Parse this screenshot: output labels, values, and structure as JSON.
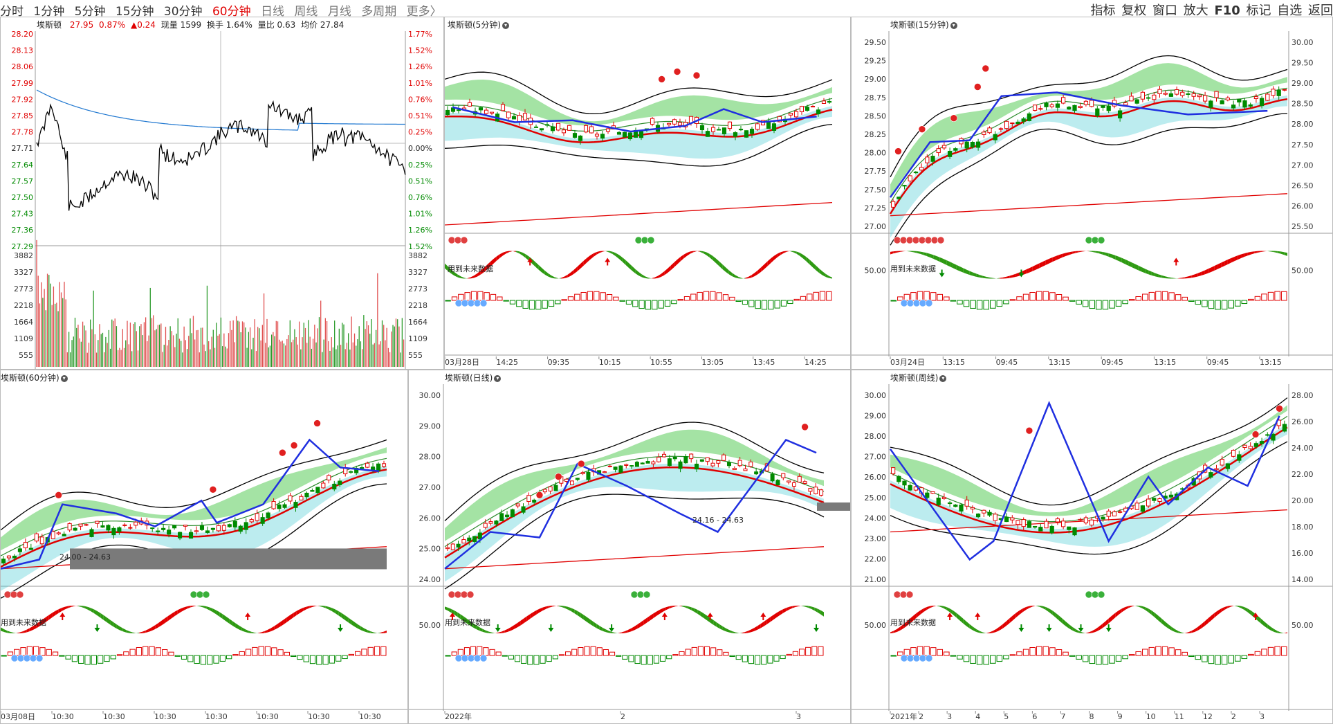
{
  "toolbar": {
    "tabs": [
      {
        "label": "分时",
        "active": false
      },
      {
        "label": "1分钟",
        "active": false
      },
      {
        "label": "5分钟",
        "active": false
      },
      {
        "label": "15分钟",
        "active": false
      },
      {
        "label": "30分钟",
        "active": false
      },
      {
        "label": "60分钟",
        "active": true
      },
      {
        "label": "日线",
        "active": false
      },
      {
        "label": "周线",
        "active": false
      },
      {
        "label": "月线",
        "active": false
      },
      {
        "label": "多周期",
        "active": false
      },
      {
        "label": "更多〉",
        "active": false
      }
    ],
    "right_items": [
      "指标",
      "复权",
      "窗口",
      "放大",
      "F10",
      "标记",
      "自选",
      "返回"
    ]
  },
  "intraday": {
    "title": "埃斯顿",
    "price": "27.95",
    "pct": "0.87%",
    "change": "▲0.24",
    "volume": "现量 1599",
    "turnover": "换手 1.64%",
    "ratio": "量比 0.63",
    "avg": "均价 27.84",
    "price_ticks": [
      "28.20",
      "28.13",
      "28.06",
      "27.99",
      "27.92",
      "27.85",
      "27.78",
      "27.71",
      "27.64",
      "27.57",
      "27.50",
      "27.43",
      "27.36",
      "27.29"
    ],
    "pct_ticks": [
      "1.77%",
      "1.52%",
      "1.26%",
      "1.01%",
      "0.76%",
      "0.51%",
      "0.25%",
      "0.00%",
      "0.25%",
      "0.51%",
      "0.76%",
      "1.01%",
      "1.26%",
      "1.52%"
    ],
    "vol_ticks": [
      "3882",
      "3327",
      "2773",
      "2218",
      "1664",
      "1109",
      "555"
    ],
    "colors": {
      "up": "#e00000",
      "down": "#008a00",
      "price_line": "#000000",
      "avg_line": "#1f77d0"
    }
  },
  "panels": {
    "m5": {
      "title": "埃斯顿(5分钟)",
      "future_label": "用到未来数据",
      "x_labels": [
        "03月28日",
        "14:25",
        "09:35",
        "10:15",
        "10:55",
        "13:05",
        "13:45",
        "14:25"
      ]
    },
    "m15": {
      "title": "埃斯顿(15分钟)",
      "future_label": "用到未来数据",
      "left_ticks": [
        "29.50",
        "29.25",
        "29.00",
        "28.75",
        "28.50",
        "28.25",
        "28.00",
        "27.75",
        "27.50",
        "27.25",
        "27.00"
      ],
      "right_ticks": [
        "30.00",
        "29.50",
        "29.00",
        "28.50",
        "28.00",
        "27.50",
        "27.00",
        "26.50",
        "26.00",
        "25.50"
      ],
      "osc_left": "50.00",
      "osc_right": "50.00",
      "x_labels": [
        "03月24日",
        "13:15",
        "09:45",
        "13:15",
        "09:45",
        "13:15",
        "09:45",
        "13:15"
      ]
    },
    "m60": {
      "title": "埃斯顿(60分钟)",
      "future_label": "用到未来数据",
      "range_label": "24.00 - 24.63",
      "x_labels": [
        "03月08日",
        "10:30",
        "10:30",
        "10:30",
        "10:30",
        "10:30",
        "10:30",
        "10:30"
      ]
    },
    "daily": {
      "title": "埃斯顿(日线)",
      "future_label": "用到未来数据",
      "range_label": "24.16 - 24.63",
      "left_ticks": [
        "30.00",
        "29.00",
        "28.00",
        "27.00",
        "26.00",
        "25.00",
        "24.00"
      ],
      "osc_left": "50.00",
      "x_labels": [
        "2022年",
        "2",
        "3"
      ]
    },
    "weekly": {
      "title": "埃斯顿(周线)",
      "future_label": "用到未来数据",
      "left_ticks": [
        "30.00",
        "29.00",
        "28.00",
        "27.00",
        "26.00",
        "25.00",
        "24.00",
        "23.00",
        "22.00",
        "21.00"
      ],
      "right_ticks": [
        "28.00",
        "26.00",
        "24.00",
        "22.00",
        "20.00",
        "18.00",
        "16.00",
        "14.00"
      ],
      "osc_left": "50.00",
      "osc_right": "50.00",
      "x_labels": [
        "2021年",
        "2",
        "3",
        "4",
        "5",
        "6",
        "7",
        "8",
        "9",
        "10",
        "11",
        "12",
        "2",
        "3"
      ]
    }
  }
}
